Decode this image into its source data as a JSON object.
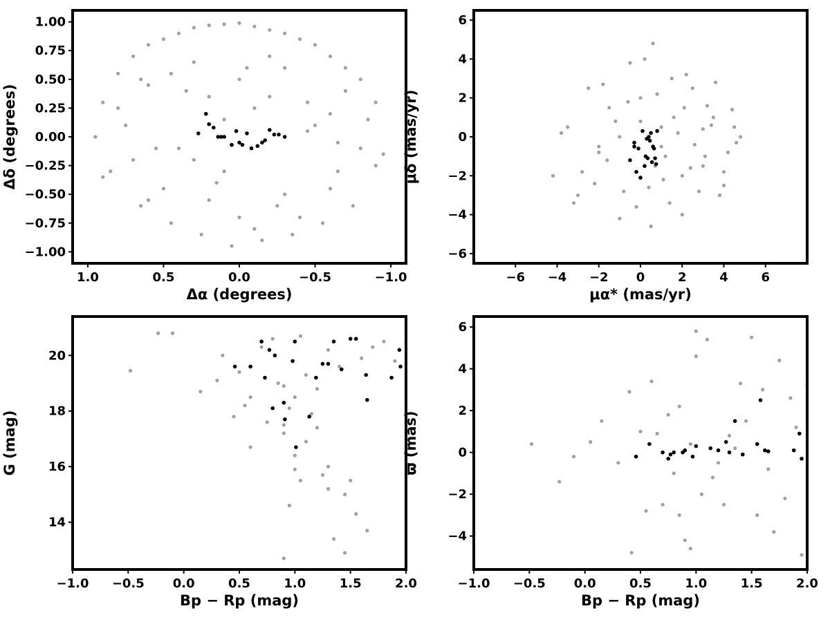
{
  "chart_data": [
    {
      "id": "sky",
      "type": "scatter",
      "xlabel": "Δα (degrees)",
      "ylabel": "Δδ (degrees)",
      "xlim": [
        1.1,
        -1.1
      ],
      "ylim": [
        -1.1,
        1.1
      ],
      "x_reversed": true,
      "xticks": [
        1.0,
        0.5,
        0.0,
        -0.5,
        -1.0
      ],
      "xtick_labels": [
        "1.0",
        "0.5",
        "0.0",
        "−0.5",
        "−1.0"
      ],
      "yticks": [
        1.0,
        0.75,
        0.5,
        0.25,
        0.0,
        -0.25,
        -0.5,
        -0.75,
        -1.0
      ],
      "ytick_labels": [
        "1.00",
        "0.75",
        "0.50",
        "0.25",
        "0.00",
        "−0.25",
        "−0.50",
        "−0.75",
        "−1.00"
      ],
      "grid": false,
      "series": [
        {
          "color": "#a0a0a0",
          "x": [
            0.9,
            0.8,
            0.7,
            0.6,
            0.5,
            0.4,
            0.3,
            0.2,
            0.1,
            0.0,
            -0.1,
            -0.2,
            -0.3,
            -0.4,
            -0.5,
            -0.6,
            -0.7,
            -0.8,
            -0.9,
            0.85,
            0.65,
            0.45,
            0.25,
            0.05,
            -0.15,
            -0.35,
            -0.55,
            -0.75,
            0.95,
            0.75,
            0.55,
            0.35,
            0.15,
            -0.05,
            -0.25,
            -0.45,
            -0.65,
            -0.85,
            -0.95,
            0.6,
            0.3,
            0.0,
            -0.3,
            -0.6,
            0.4,
            0.1,
            -0.2,
            -0.5,
            0.2,
            -0.1,
            -0.4,
            0.5,
            -0.7,
            0.7,
            0.9,
            -0.9,
            0.0,
            0.3,
            -0.3,
            0.6,
            -0.6,
            0.8,
            -0.8,
            0.1,
            -0.1,
            0.45,
            -0.45,
            0.2,
            -0.2,
            0.65,
            -0.65
          ],
          "y": [
            0.3,
            0.55,
            0.7,
            0.8,
            0.85,
            0.9,
            0.95,
            0.97,
            0.98,
            0.99,
            0.96,
            0.93,
            0.9,
            0.85,
            0.8,
            0.7,
            0.6,
            0.5,
            0.3,
            -0.3,
            -0.6,
            -0.75,
            -0.85,
            -0.95,
            -0.9,
            -0.85,
            -0.75,
            -0.6,
            0.0,
            0.1,
            -0.1,
            0.4,
            -0.4,
            0.6,
            -0.6,
            0.3,
            -0.3,
            0.15,
            -0.15,
            0.45,
            -0.2,
            0.5,
            -0.5,
            0.2,
            -0.1,
            -0.3,
            0.7,
            0.1,
            0.35,
            0.25,
            -0.7,
            -0.45,
            0.4,
            -0.2,
            -0.35,
            -0.25,
            -0.7,
            0.65,
            0.6,
            -0.55,
            -0.45,
            0.25,
            -0.1,
            0.15,
            -0.8,
            0.55,
            0.05,
            -0.55,
            0.35,
            0.5,
            -0.05
          ]
        },
        {
          "color": "#000000",
          "x": [
            0.22,
            0.2,
            0.17,
            0.14,
            0.1,
            0.05,
            0.0,
            -0.02,
            -0.05,
            -0.08,
            -0.12,
            -0.15,
            -0.17,
            -0.2,
            -0.23,
            -0.26,
            -0.3,
            0.27,
            0.12,
            0.02
          ],
          "y": [
            0.2,
            0.11,
            0.08,
            0.0,
            0.0,
            -0.07,
            -0.05,
            -0.07,
            0.03,
            -0.1,
            -0.08,
            -0.05,
            -0.03,
            0.06,
            0.02,
            0.02,
            0.0,
            0.03,
            0.0,
            0.05
          ]
        }
      ]
    },
    {
      "id": "pm",
      "type": "scatter",
      "xlabel": "μα* (mas/yr)",
      "ylabel": "μδ (mas/yr)",
      "xlim": [
        -8,
        8
      ],
      "ylim": [
        -6.5,
        6.5
      ],
      "xticks": [
        -6,
        -4,
        -2,
        0,
        2,
        4,
        6
      ],
      "xtick_labels": [
        "−6",
        "−4",
        "−2",
        "0",
        "2",
        "4",
        "6"
      ],
      "yticks": [
        6,
        4,
        2,
        0,
        -2,
        -4,
        -6
      ],
      "ytick_labels": [
        "6",
        "4",
        "2",
        "0",
        "−2",
        "−4",
        "−6"
      ],
      "grid": false,
      "series": [
        {
          "color": "#a0a0a0",
          "x": [
            -4.2,
            -3.5,
            -3.0,
            -2.5,
            -2.0,
            -1.5,
            -1.0,
            -0.5,
            0.0,
            0.5,
            1.0,
            1.5,
            2.0,
            2.5,
            3.0,
            3.5,
            4.0,
            4.5,
            4.8,
            -3.8,
            -2.8,
            -1.8,
            -0.8,
            0.2,
            1.2,
            2.2,
            3.2,
            4.2,
            -2.2,
            -1.2,
            -0.2,
            0.8,
            1.8,
            2.8,
            3.8,
            4.6,
            -1.6,
            -0.6,
            0.4,
            1.4,
            2.4,
            3.4,
            4.4,
            -3.2,
            0.6,
            1.6,
            2.6,
            3.6,
            0.7,
            1.1,
            2.1,
            3.1,
            0.0,
            1.0,
            2.0,
            3.0,
            4.0,
            -1.0,
            -2.0
          ],
          "y": [
            -2.0,
            0.5,
            -3.0,
            2.5,
            -0.5,
            1.5,
            -4.2,
            3.8,
            2.0,
            -4.6,
            0.5,
            3.0,
            -4.0,
            2.5,
            -1.5,
            1.0,
            -2.5,
            0.5,
            0.0,
            0.2,
            -1.8,
            2.7,
            -2.8,
            4.0,
            -1.0,
            3.2,
            1.6,
            -0.8,
            -2.4,
            0.8,
            -3.6,
            2.2,
            0.2,
            -2.8,
            -3.0,
            -0.3,
            -1.2,
            1.8,
            -2.6,
            -3.4,
            -1.6,
            0.6,
            1.4,
            -3.4,
            4.8,
            1.0,
            -0.4,
            2.8,
            -1.5,
            -2.2,
            1.5,
            -1.0,
            0.8,
            -0.5,
            -2.0,
            0.4,
            -1.8,
            0.0,
            -0.8
          ]
        },
        {
          "color": "#000000",
          "x": [
            -0.5,
            -0.3,
            -0.3,
            -0.2,
            0.0,
            0.1,
            0.2,
            0.3,
            0.35,
            0.4,
            0.5,
            0.55,
            0.6,
            0.65,
            0.7,
            0.75,
            0.8,
            -0.1,
            0.25,
            0.45
          ],
          "y": [
            -1.2,
            -0.3,
            -0.5,
            -1.8,
            -2.1,
            0.3,
            -1.5,
            -0.1,
            -1.1,
            0.0,
            0.2,
            -1.3,
            -0.5,
            -0.6,
            -1.1,
            -1.4,
            0.3,
            -0.6,
            -1.0,
            -0.2
          ]
        }
      ]
    },
    {
      "id": "cmd",
      "type": "scatter",
      "xlabel": "Bp − Rp (mag)",
      "ylabel": "G (mag)",
      "xlim": [
        -1.0,
        2.0
      ],
      "ylim": [
        12.3,
        21.4
      ],
      "y_reversed": false,
      "xticks": [
        -1.0,
        -0.5,
        0.0,
        0.5,
        1.0,
        1.5,
        2.0
      ],
      "xtick_labels": [
        "−1.0",
        "−0.5",
        "0.0",
        "0.5",
        "1.0",
        "1.5",
        "2.0"
      ],
      "yticks": [
        20,
        18,
        16,
        14
      ],
      "ytick_labels": [
        "20",
        "18",
        "16",
        "14"
      ],
      "grid": false,
      "series": [
        {
          "color": "#a0a0a0",
          "x": [
            -0.48,
            -0.23,
            -0.1,
            0.15,
            0.3,
            0.45,
            0.55,
            0.6,
            0.7,
            0.8,
            0.85,
            0.9,
            1.0,
            1.05,
            1.1,
            1.2,
            1.3,
            1.4,
            1.5,
            1.6,
            1.7,
            1.8,
            1.9,
            2.0,
            0.9,
            1.0,
            1.1,
            1.2,
            1.3,
            0.95,
            1.05,
            1.15,
            0.95,
            1.0,
            1.25,
            1.35,
            1.45,
            0.9,
            1.3,
            1.55,
            1.5,
            1.65,
            0.9,
            0.75,
            0.35,
            0.6,
            0.5,
            1.45
          ],
          "y": [
            19.45,
            20.8,
            20.8,
            18.7,
            19.1,
            17.8,
            18.2,
            16.7,
            20.3,
            20.6,
            19.0,
            17.2,
            18.5,
            20.7,
            19.3,
            18.8,
            20.2,
            19.6,
            20.6,
            19.9,
            20.3,
            20.5,
            19.8,
            20.5,
            17.5,
            16.4,
            16.9,
            17.4,
            16.0,
            18.1,
            15.5,
            17.9,
            14.6,
            15.9,
            15.7,
            13.4,
            15.0,
            12.7,
            15.2,
            14.3,
            15.5,
            13.7,
            18.9,
            17.6,
            20.0,
            18.5,
            19.4,
            12.9
          ]
        },
        {
          "color": "#000000",
          "x": [
            0.46,
            0.6,
            0.7,
            0.73,
            0.77,
            0.8,
            0.82,
            0.9,
            0.91,
            0.98,
            1.0,
            1.01,
            1.13,
            1.19,
            1.25,
            1.3,
            1.35,
            1.42,
            1.5,
            1.55,
            1.64,
            1.65,
            1.87,
            1.94,
            1.95
          ],
          "y": [
            19.6,
            19.6,
            20.5,
            19.2,
            20.2,
            18.1,
            20.0,
            18.3,
            17.7,
            19.8,
            20.5,
            16.7,
            17.8,
            19.2,
            19.7,
            19.7,
            20.5,
            19.5,
            20.6,
            20.6,
            19.3,
            18.4,
            19.2,
            20.2,
            19.6
          ]
        }
      ]
    },
    {
      "id": "parallax",
      "type": "scatter",
      "xlabel": "Bp − Rp (mag)",
      "ylabel": "ϖ (mas)",
      "xlim": [
        -1.0,
        2.0
      ],
      "ylim": [
        -5.6,
        6.5
      ],
      "xticks": [
        -1.0,
        -0.5,
        0.0,
        0.5,
        1.0,
        1.5,
        2.0
      ],
      "xtick_labels": [
        "−1.0",
        "−0.5",
        "0.0",
        "0.5",
        "1.0",
        "1.5",
        "2.0"
      ],
      "yticks": [
        6,
        4,
        2,
        0,
        -2,
        -4
      ],
      "ytick_labels": [
        "6",
        "4",
        "2",
        "0",
        "−2",
        "−4"
      ],
      "grid": false,
      "series": [
        {
          "color": "#a0a0a0",
          "x": [
            -0.48,
            -0.23,
            -0.1,
            0.05,
            0.15,
            0.3,
            0.4,
            0.42,
            0.5,
            0.55,
            0.6,
            0.7,
            0.75,
            0.8,
            0.85,
            0.9,
            0.95,
            1.0,
            1.0,
            1.05,
            1.1,
            1.2,
            1.3,
            1.4,
            1.5,
            1.55,
            1.6,
            1.7,
            1.75,
            1.8,
            1.9,
            1.95,
            2.0,
            0.85,
            0.95,
            1.25,
            1.45,
            1.65,
            1.85,
            0.65,
            1.15,
            1.35
          ],
          "y": [
            0.4,
            -1.4,
            -0.2,
            0.5,
            1.5,
            -0.5,
            2.9,
            -4.8,
            1.0,
            -2.8,
            3.4,
            -2.5,
            1.8,
            -1.0,
            2.2,
            -4.2,
            -4.6,
            5.8,
            4.6,
            -2.0,
            5.4,
            -0.5,
            0.8,
            3.3,
            5.5,
            -3.0,
            3.0,
            -3.8,
            4.4,
            -2.2,
            1.2,
            -4.9,
            3.2,
            -3.0,
            0.4,
            -2.5,
            1.5,
            -0.8,
            2.6,
            0.9,
            -1.2,
            0.2
          ]
        },
        {
          "color": "#000000",
          "x": [
            0.46,
            0.58,
            0.7,
            0.75,
            0.77,
            0.8,
            0.88,
            0.9,
            0.97,
            1.0,
            1.13,
            1.2,
            1.27,
            1.3,
            1.35,
            1.42,
            1.55,
            1.58,
            1.62,
            1.65,
            1.88,
            1.93,
            1.95
          ],
          "y": [
            -0.2,
            0.4,
            0.0,
            -0.3,
            -0.1,
            0.0,
            0.0,
            0.1,
            -0.2,
            0.3,
            0.2,
            0.1,
            0.5,
            0.0,
            1.5,
            -0.1,
            0.4,
            2.5,
            0.1,
            0.05,
            0.1,
            0.9,
            -0.3
          ]
        }
      ]
    }
  ]
}
